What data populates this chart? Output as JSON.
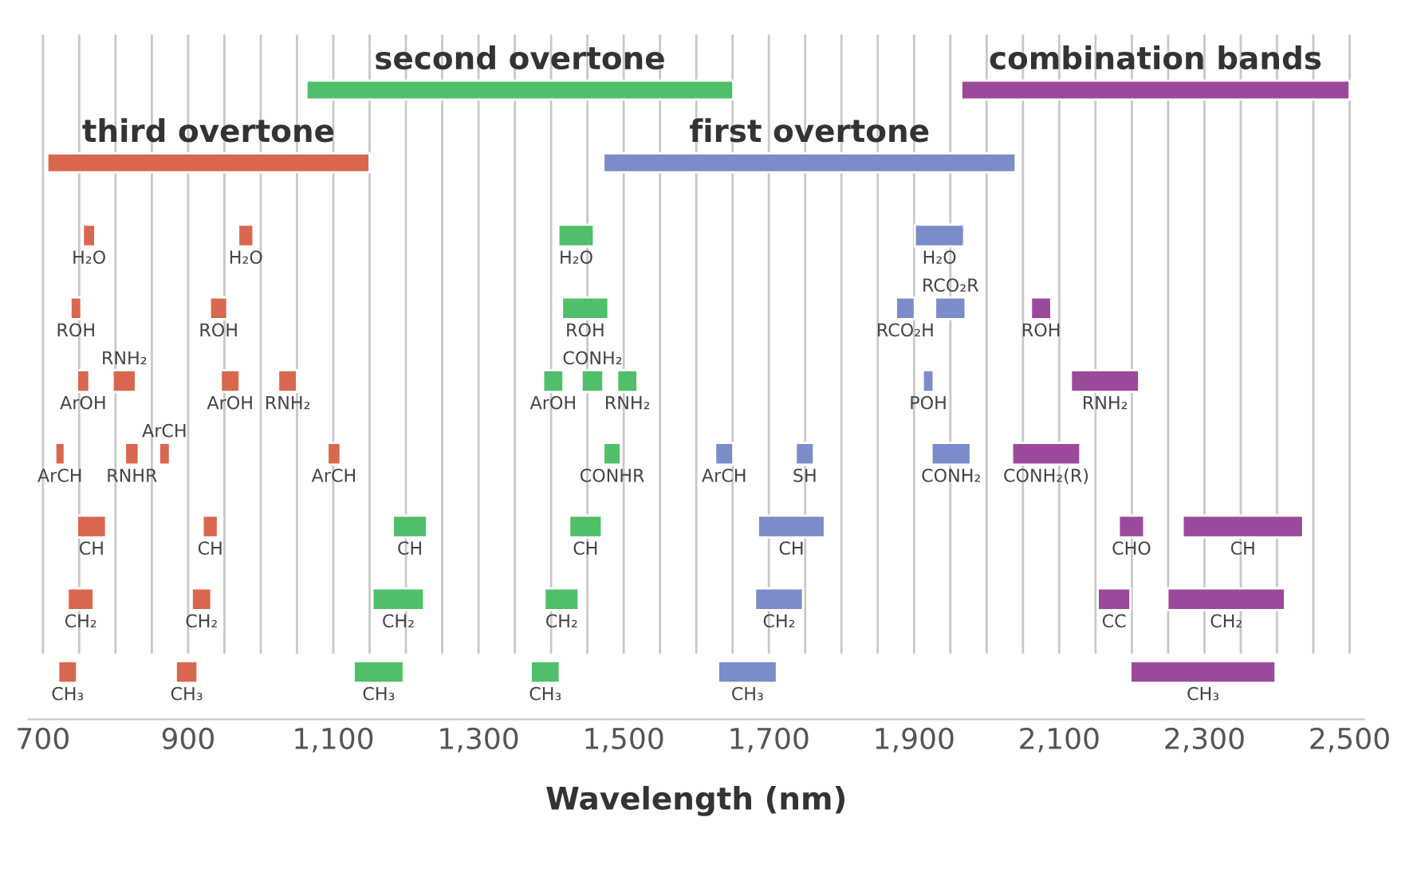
{
  "chart_data": {
    "type": "bar",
    "orientation": "horizontal",
    "xlabel": "Wavelength (nm)",
    "categories": [
      null,
      null,
      null,
      null,
      null,
      null,
      null,
      null,
      null
    ],
    "series": [
      {
        "colors": [
          "#4fbf6a",
          "#d9674f",
          null,
          null,
          null,
          null,
          null,
          null,
          null
        ],
        "base": [
          1063,
          706,
          null,
          null,
          null,
          null,
          null,
          null,
          null
        ],
        "values": [
          588,
          444,
          null,
          null,
          null,
          null,
          null,
          null,
          null
        ],
        "value_labels": [
          "second overtone",
          "third overtone",
          null,
          null,
          null,
          null,
          null,
          null,
          null
        ]
      },
      {
        "colors": [
          "#9b4a9b",
          "#7b8cc9",
          null,
          null,
          null,
          null,
          null,
          null,
          null
        ],
        "base": [
          1965,
          1472,
          null,
          null,
          null,
          null,
          null,
          null,
          null
        ],
        "values": [
          535,
          568,
          null,
          null,
          null,
          null,
          null,
          null,
          null
        ],
        "value_labels": [
          "combination bands",
          "first overtone",
          null,
          null,
          null,
          null,
          null,
          null,
          null
        ]
      },
      {
        "color": "#d9674f",
        "base": [
          null,
          null,
          755,
          738,
          747,
          717,
          747,
          734,
          721
        ],
        "values": [
          null,
          null,
          17,
          15,
          17,
          13,
          40,
          36,
          26
        ],
        "value_labels": [
          null,
          null,
          "H₂O",
          "ROH",
          "ArOH",
          "ArCH",
          "CH",
          "CH₂",
          "CH₃"
        ]
      },
      {
        "color": "#d9674f",
        "base": [
          null,
          null,
          969,
          930,
          796,
          813,
          920,
          905,
          883
        ],
        "values": [
          null,
          null,
          21,
          24,
          32,
          19,
          21,
          27,
          30
        ],
        "value_labels": [
          null,
          null,
          "H₂O",
          "ROH",
          "RNH₂",
          "RNHR",
          "CH",
          "CH₂",
          "CH₃"
        ]
      },
      {
        "color": "#d9674f",
        "base": [
          null,
          null,
          null,
          null,
          945,
          860,
          null,
          null,
          null
        ],
        "values": [
          null,
          null,
          null,
          null,
          26,
          15,
          null,
          null,
          null
        ],
        "value_labels": [
          null,
          null,
          null,
          null,
          "ArOH",
          "ArCH",
          null,
          null,
          null
        ]
      },
      {
        "color": "#d9674f",
        "base": [
          null,
          null,
          null,
          null,
          1024,
          1092,
          null,
          null,
          null
        ],
        "values": [
          null,
          null,
          null,
          null,
          26,
          18,
          null,
          null,
          null
        ],
        "value_labels": [
          null,
          null,
          null,
          null,
          "RNH₂",
          "ArCH",
          null,
          null,
          null
        ]
      },
      {
        "color": "#4fbf6a",
        "base": [
          null,
          null,
          1410,
          1415,
          1389,
          1472,
          1182,
          1154,
          1128
        ],
        "values": [
          null,
          null,
          49,
          64,
          28,
          24,
          47,
          71,
          69
        ],
        "value_labels": [
          null,
          null,
          "H₂O",
          "ROH",
          "ArOH",
          "CONHR",
          "CH",
          "CH₂",
          "CH₃"
        ]
      },
      {
        "color": "#4fbf6a",
        "base": [
          null,
          null,
          null,
          null,
          1442,
          null,
          1425,
          1391,
          1372
        ],
        "values": [
          null,
          null,
          null,
          null,
          30,
          null,
          45,
          47,
          40
        ],
        "value_labels": [
          null,
          null,
          null,
          null,
          "CONH₂",
          null,
          "CH",
          "CH₂",
          "CH₃"
        ]
      },
      {
        "color": "#4fbf6a",
        "base": [
          null,
          null,
          null,
          null,
          1491,
          null,
          null,
          null,
          null
        ],
        "values": [
          null,
          null,
          null,
          null,
          28,
          null,
          null,
          null,
          null
        ],
        "value_labels": [
          null,
          null,
          null,
          null,
          "RNH₂",
          null,
          null,
          null,
          null
        ]
      },
      {
        "color": "#7b8cc9",
        "base": [
          null,
          null,
          1901,
          1875,
          1912,
          1626,
          1685,
          1681,
          1630
        ],
        "values": [
          null,
          null,
          68,
          26,
          15,
          25,
          92,
          66,
          81
        ],
        "value_labels": [
          null,
          null,
          "H₂O",
          "RCO₂H",
          "POH",
          "ArCH",
          "CH",
          "CH₂",
          "CH₃"
        ]
      },
      {
        "color": "#7b8cc9",
        "base": [
          null,
          null,
          null,
          1929,
          null,
          1737,
          null,
          null,
          null
        ],
        "values": [
          null,
          null,
          null,
          42,
          null,
          25,
          null,
          null,
          null
        ],
        "value_labels": [
          null,
          null,
          null,
          "RCO₂R",
          null,
          "SH",
          null,
          null,
          null
        ]
      },
      {
        "color": "#7b8cc9",
        "base": [
          null,
          null,
          null,
          null,
          null,
          1924,
          null,
          null,
          null
        ],
        "values": [
          null,
          null,
          null,
          null,
          null,
          54,
          null,
          null,
          null
        ],
        "value_labels": [
          null,
          null,
          null,
          null,
          null,
          "CONH₂",
          null,
          null,
          null
        ]
      },
      {
        "color": "#9b4a9b",
        "base": [
          null,
          null,
          null,
          2061,
          2116,
          2035,
          2182,
          2153,
          2198
        ],
        "values": [
          null,
          null,
          null,
          28,
          94,
          94,
          35,
          45,
          200
        ],
        "value_labels": [
          null,
          null,
          null,
          "ROH",
          "RNH₂",
          "CONH₂(R)",
          "CHO",
          "CC",
          "CH₃"
        ]
      },
      {
        "color": "#9b4a9b",
        "base": [
          null,
          null,
          null,
          null,
          null,
          null,
          2270,
          2249,
          null
        ],
        "values": [
          null,
          null,
          null,
          null,
          null,
          null,
          166,
          162,
          null
        ],
        "value_labels": [
          null,
          null,
          null,
          null,
          null,
          null,
          "CH",
          "CH₂",
          null
        ]
      }
    ],
    "xlim": [
      680,
      2520
    ],
    "xticks": [
      700,
      {
        "value": 750,
        "label": null
      },
      {
        "value": 800,
        "label": null
      },
      {
        "value": 850,
        "label": null
      },
      {
        "value": 900,
        "label": "900"
      },
      {
        "value": 950,
        "label": null
      },
      {
        "value": 1000,
        "label": null
      },
      {
        "value": 1050,
        "label": null
      },
      {
        "value": 1100,
        "label": "1,100"
      },
      {
        "value": 1150,
        "label": null
      },
      {
        "value": 1200,
        "label": null
      },
      {
        "value": 1250,
        "label": null
      },
      {
        "value": 1300,
        "label": "1,300"
      },
      {
        "value": 1350,
        "label": null
      },
      {
        "value": 1400,
        "label": null
      },
      {
        "value": 1450,
        "label": null
      },
      {
        "value": 1500,
        "label": "1,500"
      },
      {
        "value": 1550,
        "label": null
      },
      {
        "value": 1600,
        "label": null
      },
      {
        "value": 1650,
        "label": null
      },
      {
        "value": 1700,
        "label": "1,700"
      },
      {
        "value": 1750,
        "label": null
      },
      {
        "value": 1800,
        "label": null
      },
      {
        "value": 1850,
        "label": null
      },
      {
        "value": 1900,
        "label": "1,900"
      },
      {
        "value": 1950,
        "label": null
      },
      {
        "value": 2000,
        "label": null
      },
      {
        "value": 2050,
        "label": null
      },
      {
        "value": 2100,
        "label": "2,100"
      },
      {
        "value": 2150,
        "label": null
      },
      {
        "value": 2200,
        "label": null
      },
      {
        "value": 2250,
        "label": null
      },
      {
        "value": 2300,
        "label": "2,300"
      },
      {
        "value": 2350,
        "label": null
      },
      {
        "value": 2400,
        "label": null
      },
      {
        "value": 2450,
        "label": null
      },
      {
        "value": 2500,
        "label": "2,500"
      }
    ],
    "grid": "x",
    "tick_labels": "x"
  }
}
